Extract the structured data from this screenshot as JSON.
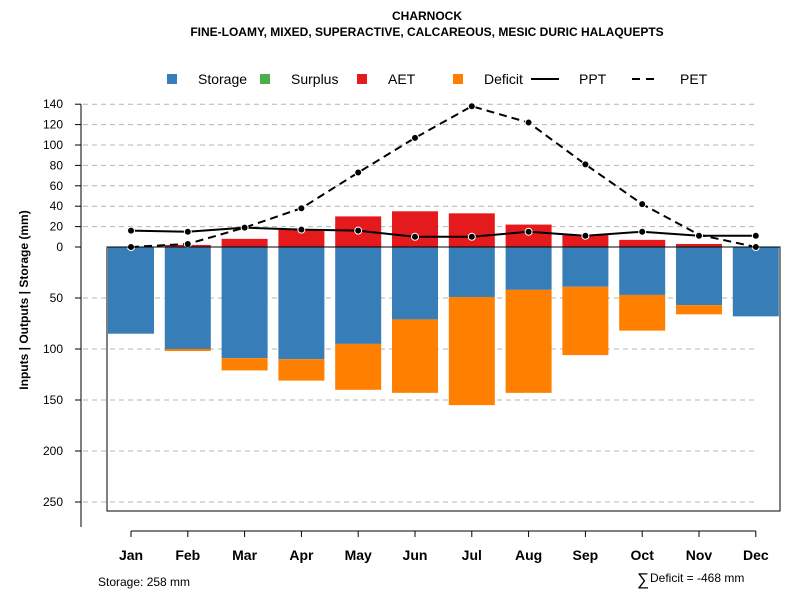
{
  "chart_data": {
    "type": "bar",
    "title": "CHARNOCK",
    "subtitle": "FINE-LOAMY, MIXED, SUPERACTIVE, CALCAREOUS, MESIC DURIC HALAQUEPTS",
    "ylabel": "Inputs | Outputs | Storage     (mm)",
    "categories": [
      "Jan",
      "Feb",
      "Mar",
      "Apr",
      "May",
      "Jun",
      "Jul",
      "Aug",
      "Sep",
      "Oct",
      "Nov",
      "Dec"
    ],
    "upper_ticks": [
      "140",
      "120",
      "100",
      "80",
      "60",
      "40",
      "20",
      "0"
    ],
    "lower_ticks": [
      "50",
      "100",
      "150",
      "200",
      "250"
    ],
    "ylim_upper": [
      0,
      140
    ],
    "ylim_lower": [
      0,
      260
    ],
    "legend": [
      {
        "name": "Storage",
        "kind": "box",
        "color": "#377eb8"
      },
      {
        "name": "Surplus",
        "kind": "box",
        "color": "#4daf4a"
      },
      {
        "name": "AET",
        "kind": "box",
        "color": "#e41a1c"
      },
      {
        "name": "Deficit",
        "kind": "box",
        "color": "#ff7f00"
      },
      {
        "name": "PPT",
        "kind": "solid",
        "color": "#000000"
      },
      {
        "name": "PET",
        "kind": "dashed",
        "color": "#000000"
      }
    ],
    "series": [
      {
        "name": "AET",
        "values": [
          0,
          2,
          8,
          17,
          30,
          35,
          33,
          22,
          12,
          7,
          3,
          0
        ]
      },
      {
        "name": "Storage",
        "values": [
          85,
          100,
          109,
          110,
          95,
          71,
          49,
          42,
          39,
          47,
          57,
          68
        ]
      },
      {
        "name": "Deficit",
        "values": [
          0,
          2,
          12,
          21,
          45,
          72,
          106,
          101,
          67,
          35,
          9,
          0
        ]
      },
      {
        "name": "Surplus",
        "values": [
          0,
          0,
          0,
          0,
          0,
          0,
          0,
          0,
          0,
          0,
          0,
          0
        ]
      },
      {
        "name": "PPT",
        "values": [
          16,
          15,
          19,
          17,
          16,
          10,
          10,
          15,
          11,
          15,
          11,
          11
        ]
      },
      {
        "name": "PET",
        "values": [
          0,
          3,
          19,
          38,
          73,
          107,
          138,
          122,
          81,
          42,
          12,
          0
        ]
      }
    ]
  },
  "footer": {
    "storage": "Storage: 258 mm",
    "deficit_symbol": "∑",
    "deficit": "Deficit = -468 mm"
  }
}
